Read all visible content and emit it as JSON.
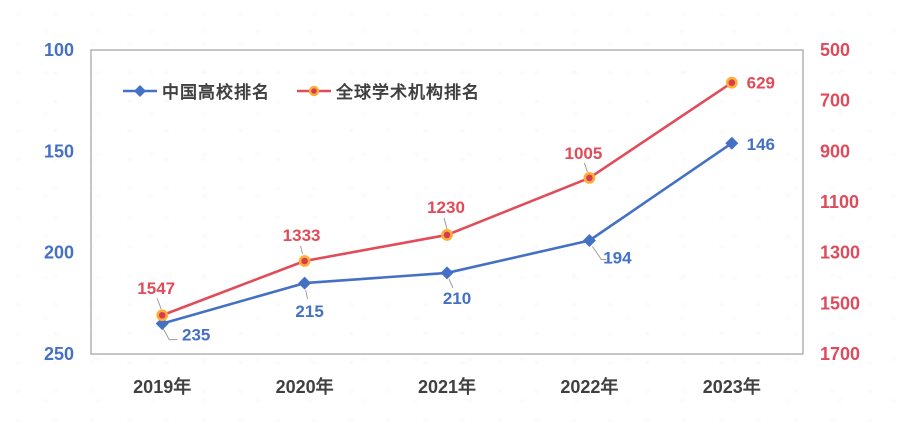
{
  "chart_data": {
    "type": "line",
    "title": "",
    "categories": [
      "2019年",
      "2020年",
      "2021年",
      "2022年",
      "2023年"
    ],
    "series": [
      {
        "name": "中国高校排名",
        "axis": "left",
        "marker": "diamond",
        "color": "#4571C4",
        "values": [
          235,
          215,
          210,
          194,
          146
        ]
      },
      {
        "name": "全球学术机构排名",
        "axis": "right",
        "marker": "circle",
        "color": "#E24B59",
        "marker_fill": "#D63C50",
        "marker_ring": "#FFAE3A",
        "values": [
          1547,
          1333,
          1230,
          1005,
          629
        ]
      }
    ],
    "left_axis": {
      "ticks": [
        100,
        150,
        200,
        250
      ],
      "range": [
        100,
        250
      ],
      "color": "#4571C4"
    },
    "right_axis": {
      "ticks": [
        500,
        700,
        900,
        1100,
        1300,
        1500,
        1700
      ],
      "range": [
        500,
        1700
      ],
      "color": "#DE4B5C"
    },
    "x_axis": {
      "color": "#404040"
    },
    "grid": false,
    "legend_position": "top-left-inside",
    "plot_border_color": "#A8A8A8",
    "leader_line_color": "#9E9E9E"
  }
}
